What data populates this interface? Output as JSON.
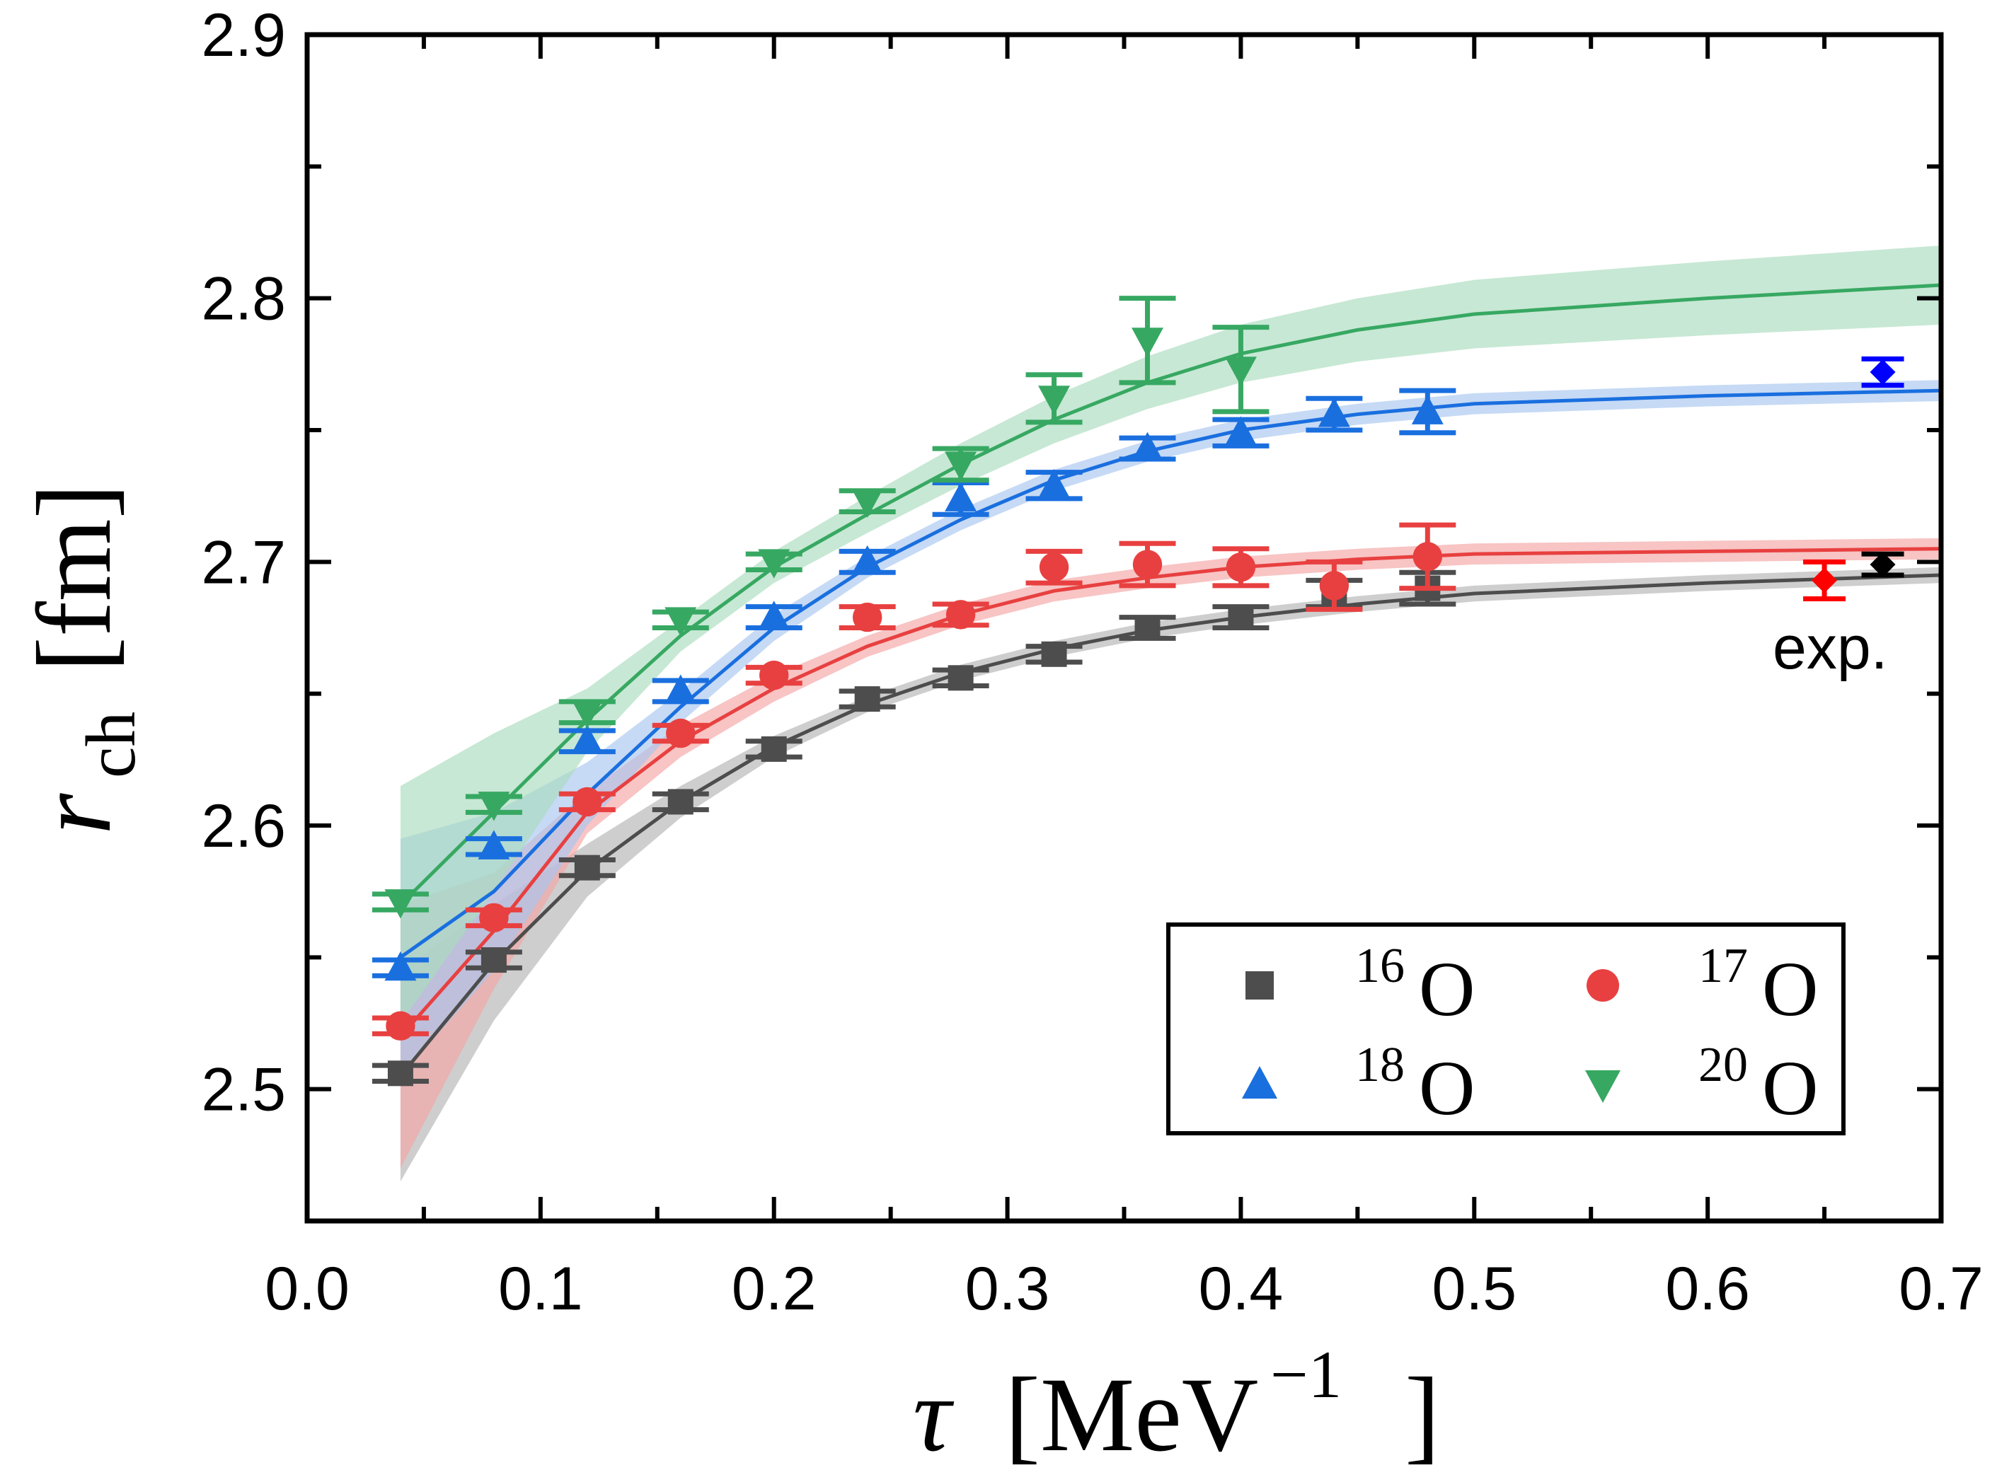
{
  "chart_data": {
    "type": "scatter",
    "title": "",
    "xlabel": "τ [MeV⁻¹]",
    "xlabel_parts": {
      "symbol": "τ",
      "unit": "[MeV",
      "exp": "−1",
      "close": "]"
    },
    "ylabel_parts": {
      "symbol": "r",
      "sub": "ch",
      "unit": "[fm]"
    },
    "xlim": [
      0.0,
      0.7
    ],
    "ylim": [
      2.45,
      2.9
    ],
    "xticks": [
      "0.0",
      "0.1",
      "0.2",
      "0.3",
      "0.4",
      "0.5",
      "0.6",
      "0.7"
    ],
    "yticks": [
      "2.5",
      "2.6",
      "2.7",
      "2.8",
      "2.9"
    ],
    "legend_placement": "bottom-right",
    "annotation": "exp.",
    "series": [
      {
        "name": "16O",
        "mass": "16",
        "element": "O",
        "marker": "square",
        "color": "#4d4d4d",
        "band_color": "#b3b3b3",
        "x": [
          0.04,
          0.08,
          0.12,
          0.16,
          0.2,
          0.24,
          0.28,
          0.32,
          0.36,
          0.4,
          0.44,
          0.48
        ],
        "y": [
          2.506,
          2.549,
          2.584,
          2.609,
          2.629,
          2.648,
          2.656,
          2.665,
          2.675,
          2.679,
          2.688,
          2.69
        ],
        "err": [
          0.003,
          0.003,
          0.003,
          0.003,
          0.003,
          0.003,
          0.003,
          0.003,
          0.004,
          0.004,
          0.005,
          0.006
        ],
        "fit_x": [
          0.04,
          0.08,
          0.12,
          0.16,
          0.2,
          0.24,
          0.28,
          0.32,
          0.36,
          0.4,
          0.45,
          0.5,
          0.6,
          0.7
        ],
        "fit_y": [
          2.505,
          2.548,
          2.583,
          2.609,
          2.63,
          2.646,
          2.658,
          2.667,
          2.674,
          2.679,
          2.684,
          2.688,
          2.692,
          2.695
        ],
        "fit_err": [
          0.04,
          0.022,
          0.01,
          0.006,
          0.004,
          0.003,
          0.003,
          0.003,
          0.003,
          0.003,
          0.003,
          0.003,
          0.003,
          0.003
        ],
        "exp": {
          "x": 0.675,
          "y": 2.699,
          "err": 0.004,
          "color": "#000000"
        }
      },
      {
        "name": "17O",
        "mass": "17",
        "element": "O",
        "marker": "circle",
        "color": "#e84040",
        "band_color": "#f4a5a5",
        "x": [
          0.04,
          0.08,
          0.12,
          0.16,
          0.2,
          0.24,
          0.28,
          0.32,
          0.36,
          0.4,
          0.44,
          0.48
        ],
        "y": [
          2.524,
          2.565,
          2.609,
          2.635,
          2.657,
          2.679,
          2.68,
          2.698,
          2.699,
          2.698,
          2.691,
          2.702
        ],
        "err": [
          0.003,
          0.003,
          0.003,
          0.003,
          0.003,
          0.004,
          0.004,
          0.006,
          0.008,
          0.007,
          0.009,
          0.012
        ],
        "fit_x": [
          0.04,
          0.08,
          0.12,
          0.16,
          0.2,
          0.24,
          0.28,
          0.32,
          0.36,
          0.4,
          0.45,
          0.5,
          0.6,
          0.7
        ],
        "fit_y": [
          2.52,
          2.56,
          2.605,
          2.632,
          2.652,
          2.668,
          2.68,
          2.689,
          2.694,
          2.698,
          2.701,
          2.703,
          2.704,
          2.705
        ],
        "fit_err": [
          0.05,
          0.022,
          0.008,
          0.006,
          0.005,
          0.004,
          0.004,
          0.004,
          0.004,
          0.004,
          0.004,
          0.004,
          0.004,
          0.004
        ],
        "exp": {
          "x": 0.65,
          "y": 2.693,
          "err": 0.007,
          "color": "#ff0000"
        }
      },
      {
        "name": "18O",
        "mass": "18",
        "element": "O",
        "marker": "triangle-up",
        "color": "#1a6fdf",
        "band_color": "#a8c6f0",
        "x": [
          0.04,
          0.08,
          0.12,
          0.16,
          0.2,
          0.24,
          0.28,
          0.32,
          0.36,
          0.4,
          0.44,
          0.48
        ],
        "y": [
          2.546,
          2.592,
          2.632,
          2.651,
          2.679,
          2.7,
          2.724,
          2.729,
          2.743,
          2.749,
          2.756,
          2.757
        ],
        "err": [
          0.003,
          0.003,
          0.004,
          0.004,
          0.004,
          0.004,
          0.006,
          0.005,
          0.004,
          0.005,
          0.006,
          0.008
        ],
        "fit_x": [
          0.04,
          0.08,
          0.12,
          0.16,
          0.2,
          0.24,
          0.28,
          0.32,
          0.36,
          0.4,
          0.45,
          0.5,
          0.6,
          0.7
        ],
        "fit_y": [
          2.55,
          2.575,
          2.612,
          2.645,
          2.675,
          2.698,
          2.716,
          2.731,
          2.742,
          2.75,
          2.756,
          2.76,
          2.763,
          2.765
        ],
        "fit_err": [
          0.045,
          0.03,
          0.012,
          0.006,
          0.005,
          0.004,
          0.004,
          0.004,
          0.004,
          0.004,
          0.004,
          0.004,
          0.004,
          0.004
        ],
        "exp": {
          "x": 0.675,
          "y": 2.772,
          "err": 0.005,
          "color": "#0000ff"
        }
      },
      {
        "name": "20O",
        "mass": "20",
        "element": "O",
        "marker": "triangle-down",
        "color": "#37a862",
        "band_color": "#a9dbbd",
        "x": [
          0.04,
          0.08,
          0.12,
          0.16,
          0.2,
          0.24,
          0.28,
          0.32,
          0.36,
          0.4
        ],
        "y": [
          2.571,
          2.608,
          2.643,
          2.678,
          2.7,
          2.723,
          2.737,
          2.762,
          2.784,
          2.773
        ],
        "err": [
          0.003,
          0.003,
          0.004,
          0.003,
          0.003,
          0.004,
          0.006,
          0.009,
          0.016,
          0.016
        ],
        "fit_x": [
          0.04,
          0.08,
          0.12,
          0.16,
          0.2,
          0.24,
          0.28,
          0.32,
          0.36,
          0.4,
          0.45,
          0.5,
          0.6,
          0.7
        ],
        "fit_y": [
          2.57,
          2.605,
          2.64,
          2.672,
          2.698,
          2.718,
          2.737,
          2.754,
          2.768,
          2.779,
          2.788,
          2.794,
          2.8,
          2.805
        ],
        "fit_err": [
          0.045,
          0.03,
          0.012,
          0.006,
          0.006,
          0.007,
          0.008,
          0.009,
          0.01,
          0.011,
          0.012,
          0.013,
          0.014,
          0.015
        ]
      }
    ]
  }
}
